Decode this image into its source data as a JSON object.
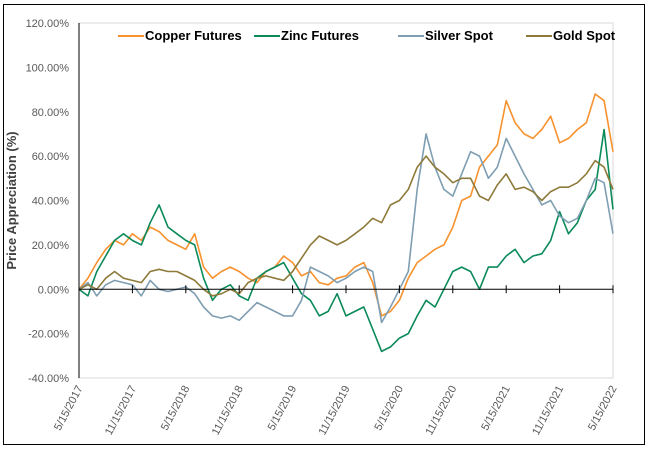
{
  "chart_data": {
    "type": "line",
    "title": "",
    "xlabel": "",
    "ylabel": "Price Appreciation (%)",
    "ylim": [
      -40,
      120
    ],
    "yticks": [
      "-40.00%",
      "-20.00%",
      "0.00%",
      "20.00%",
      "40.00%",
      "60.00%",
      "80.00%",
      "100.00%",
      "120.00%"
    ],
    "xtick_labels": [
      "5/15/2017",
      "11/15/2017",
      "5/15/2018",
      "11/15/2018",
      "5/15/2019",
      "11/15/2019",
      "5/15/2020",
      "11/15/2020",
      "5/15/2021",
      "11/15/2021",
      "5/15/2022"
    ],
    "legend_position": "top",
    "grid": false,
    "x": [
      "2017-05",
      "2017-06",
      "2017-07",
      "2017-08",
      "2017-09",
      "2017-10",
      "2017-11",
      "2017-12",
      "2018-01",
      "2018-02",
      "2018-03",
      "2018-04",
      "2018-05",
      "2018-06",
      "2018-07",
      "2018-08",
      "2018-09",
      "2018-10",
      "2018-11",
      "2018-12",
      "2019-01",
      "2019-02",
      "2019-03",
      "2019-04",
      "2019-05",
      "2019-06",
      "2019-07",
      "2019-08",
      "2019-09",
      "2019-10",
      "2019-11",
      "2019-12",
      "2020-01",
      "2020-02",
      "2020-03",
      "2020-04",
      "2020-05",
      "2020-06",
      "2020-07",
      "2020-08",
      "2020-09",
      "2020-10",
      "2020-11",
      "2020-12",
      "2021-01",
      "2021-02",
      "2021-03",
      "2021-04",
      "2021-05",
      "2021-06",
      "2021-07",
      "2021-08",
      "2021-09",
      "2021-10",
      "2021-11",
      "2021-12",
      "2022-01",
      "2022-02",
      "2022-03",
      "2022-04",
      "2022-05"
    ],
    "series": [
      {
        "name": "Copper Futures",
        "color": "#F7922E",
        "values": [
          0,
          5,
          12,
          18,
          22,
          20,
          25,
          22,
          28,
          26,
          22,
          20,
          18,
          25,
          10,
          5,
          8,
          10,
          8,
          5,
          3,
          8,
          10,
          15,
          12,
          6,
          8,
          3,
          2,
          5,
          6,
          10,
          12,
          3,
          -12,
          -10,
          -5,
          5,
          12,
          15,
          18,
          20,
          28,
          40,
          42,
          55,
          60,
          65,
          85,
          75,
          70,
          68,
          72,
          78,
          66,
          68,
          72,
          75,
          88,
          85,
          62
        ]
      },
      {
        "name": "Zinc Futures",
        "color": "#0B8A5A",
        "values": [
          0,
          -3,
          8,
          15,
          22,
          25,
          22,
          20,
          30,
          38,
          28,
          25,
          22,
          20,
          5,
          -5,
          0,
          2,
          -3,
          -5,
          5,
          8,
          10,
          12,
          5,
          -2,
          -5,
          -12,
          -10,
          -2,
          -12,
          -10,
          -8,
          -18,
          -28,
          -26,
          -22,
          -20,
          -12,
          -5,
          -8,
          0,
          8,
          10,
          8,
          0,
          10,
          10,
          15,
          18,
          12,
          15,
          16,
          22,
          35,
          25,
          30,
          40,
          45,
          72,
          36
        ]
      },
      {
        "name": "Silver Spot",
        "color": "#7F9EB2",
        "values": [
          0,
          3,
          -3,
          2,
          4,
          3,
          2,
          -3,
          4,
          0,
          -1,
          0,
          1,
          -2,
          -8,
          -12,
          -13,
          -12,
          -14,
          -10,
          -6,
          -8,
          -10,
          -12,
          -12,
          -5,
          10,
          8,
          6,
          3,
          5,
          8,
          10,
          8,
          -15,
          -8,
          0,
          8,
          45,
          70,
          55,
          45,
          42,
          52,
          62,
          60,
          50,
          55,
          68,
          60,
          52,
          45,
          38,
          40,
          33,
          30,
          32,
          40,
          50,
          48,
          25
        ]
      },
      {
        "name": "Gold Spot",
        "color": "#8E7A3A",
        "values": [
          0,
          2,
          0,
          5,
          8,
          5,
          4,
          3,
          8,
          9,
          8,
          8,
          6,
          4,
          0,
          -3,
          -2,
          0,
          -2,
          3,
          5,
          6,
          5,
          4,
          8,
          14,
          20,
          24,
          22,
          20,
          22,
          25,
          28,
          32,
          30,
          38,
          40,
          45,
          55,
          60,
          55,
          52,
          48,
          50,
          50,
          42,
          40,
          47,
          52,
          45,
          46,
          44,
          40,
          44,
          46,
          46,
          48,
          52,
          58,
          55,
          45
        ]
      }
    ]
  }
}
